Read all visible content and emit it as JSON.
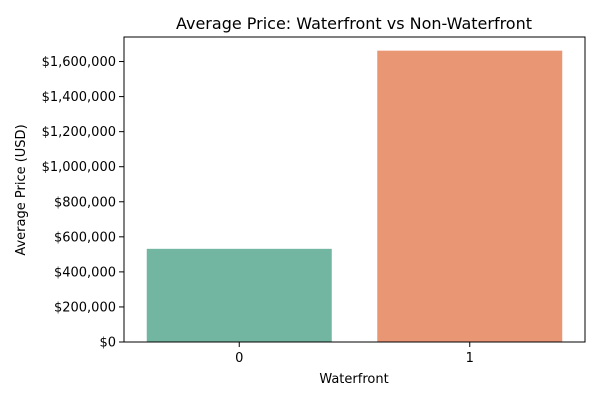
{
  "chart_data": {
    "type": "bar",
    "title": "Average Price: Waterfront vs Non-Waterfront",
    "xlabel": "Waterfront",
    "ylabel": "Average Price (USD)",
    "categories": [
      "0",
      "1"
    ],
    "values": [
      531600,
      1662000
    ],
    "ylim": [
      0,
      1740000
    ],
    "yticks": [
      0,
      200000,
      400000,
      600000,
      800000,
      1000000,
      1200000,
      1400000,
      1600000
    ],
    "ytick_labels": [
      "$0",
      "$200,000",
      "$400,000",
      "$600,000",
      "$800,000",
      "$1,000,000",
      "$1,200,000",
      "$1,400,000",
      "$1,600,000"
    ],
    "colors": [
      "#72b6a1",
      "#e99675"
    ],
    "grid": false,
    "legend": "none"
  }
}
